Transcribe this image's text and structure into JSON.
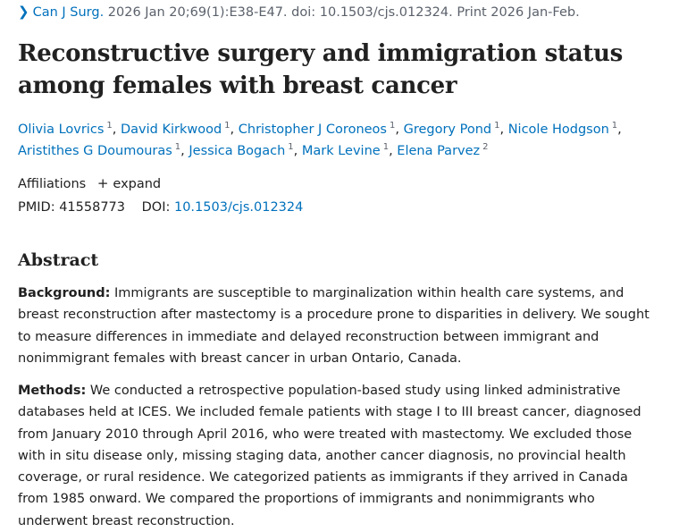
{
  "citation": {
    "journal": "Can J Surg.",
    "details": "2026 Jan 20;69(1):E38-E47. doi: 10.1503/cjs.012324. Print 2026 Jan-Feb."
  },
  "title": "Reconstructive surgery and immigration status among females with breast cancer",
  "authors": [
    {
      "name": "Olivia Lovrics",
      "aff": "1"
    },
    {
      "name": "David Kirkwood",
      "aff": "1"
    },
    {
      "name": "Christopher J Coroneos",
      "aff": "1"
    },
    {
      "name": "Gregory Pond",
      "aff": "1"
    },
    {
      "name": "Nicole Hodgson",
      "aff": "1"
    },
    {
      "name": "Aristithes G Doumouras",
      "aff": "1"
    },
    {
      "name": "Jessica Bogach",
      "aff": "1"
    },
    {
      "name": "Mark Levine",
      "aff": "1"
    },
    {
      "name": "Elena Parvez",
      "aff": "2"
    }
  ],
  "affiliations": {
    "label": "Affiliations",
    "expand": "expand"
  },
  "ids": {
    "pmid_label": "PMID:",
    "pmid": "41558773",
    "doi_label": "DOI:",
    "doi": "10.1503/cjs.012324"
  },
  "abstract": {
    "heading": "Abstract",
    "background_label": "Background:",
    "background_text": "Immigrants are susceptible to marginalization within health care systems, and breast reconstruction after mastectomy is a procedure prone to disparities in delivery. We sought to measure differences in immediate and delayed reconstruction between immigrant and nonimmigrant females with breast cancer in urban Ontario, Canada.",
    "methods_label": "Methods:",
    "methods_text": "We conducted a retrospective population-based study using linked administrative databases held at ICES. We included female patients with stage I to III breast cancer, diagnosed from January 2010 through April 2016, who were treated with mastectomy. We excluded those with in situ disease only, missing staging data, another cancer diagnosis, no provincial health coverage, or rural residence. We categorized patients as immigrants if they arrived in Canada from 1985 onward. We compared the proportions of immigrants and nonimmigrants who underwent breast reconstruction."
  }
}
